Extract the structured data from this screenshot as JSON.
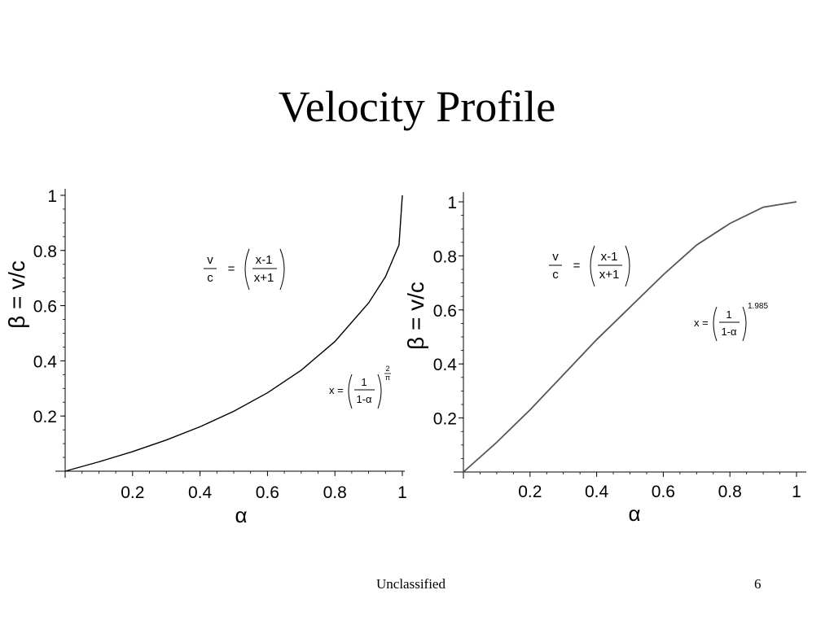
{
  "slide": {
    "title": "Velocity Profile",
    "footer": "Unclassified",
    "page_number": "6"
  },
  "chart_data": [
    {
      "type": "line",
      "title": "",
      "xlabel": "α",
      "ylabel": "β = v/c",
      "xlim": [
        0,
        1
      ],
      "ylim": [
        0,
        1
      ],
      "xticks": [
        0.2,
        0.4,
        0.6,
        0.8,
        1
      ],
      "xtick_labels": [
        "0.2",
        "0.4",
        "0.6",
        "0.8",
        "1"
      ],
      "yticks": [
        0.2,
        0.4,
        0.6,
        0.8,
        1
      ],
      "ytick_labels": [
        "0.2",
        "0.4",
        "0.6",
        "0.8",
        "1"
      ],
      "grid": false,
      "series": [
        {
          "color": "#000000",
          "x": [
            0,
            0.1,
            0.2,
            0.3,
            0.4,
            0.5,
            0.6,
            0.7,
            0.8,
            0.9,
            0.95,
            0.99,
            1.0
          ],
          "y": [
            0,
            0.034,
            0.071,
            0.113,
            0.161,
            0.217,
            0.284,
            0.366,
            0.47,
            0.61,
            0.705,
            0.82,
            1.0
          ]
        }
      ],
      "annotations": {
        "formula1": {
          "lhs_num": "v",
          "lhs_den": "c",
          "eq": "=",
          "rhs_num": "x-1",
          "rhs_den": "x+1"
        },
        "formula2": {
          "var": "x",
          "eq": "=",
          "num": "1",
          "den": "1-α",
          "exp_num": "2",
          "exp_den": "π"
        }
      }
    },
    {
      "type": "line",
      "title": "",
      "xlabel": "α",
      "ylabel": "β = v/c",
      "xlim": [
        0,
        1
      ],
      "ylim": [
        0,
        1
      ],
      "xticks": [
        0.2,
        0.4,
        0.6,
        0.8,
        1
      ],
      "xtick_labels": [
        "0.2",
        "0.4",
        "0.6",
        "0.8",
        "1"
      ],
      "yticks": [
        0.2,
        0.4,
        0.6,
        0.8,
        1
      ],
      "ytick_labels": [
        "0.2",
        "0.4",
        "0.6",
        "0.8",
        "1"
      ],
      "grid": false,
      "series": [
        {
          "color": "#555555",
          "x": [
            0,
            0.1,
            0.2,
            0.3,
            0.4,
            0.5,
            0.6,
            0.7,
            0.8,
            0.9,
            1.0
          ],
          "y": [
            0,
            0.11,
            0.23,
            0.36,
            0.49,
            0.61,
            0.73,
            0.84,
            0.92,
            0.98,
            1.0
          ]
        }
      ],
      "annotations": {
        "formula1": {
          "lhs_num": "v",
          "lhs_den": "c",
          "eq": "=",
          "rhs_num": "x-1",
          "rhs_den": "x+1"
        },
        "formula2": {
          "var": "x",
          "eq": "=",
          "num": "1",
          "den": "1-α",
          "exp": "1.985"
        }
      }
    }
  ]
}
